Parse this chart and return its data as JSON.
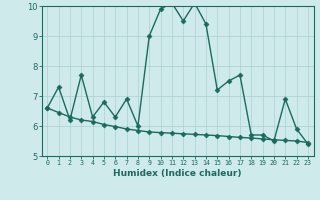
{
  "xlabel": "Humidex (Indice chaleur)",
  "x": [
    0,
    1,
    2,
    3,
    4,
    5,
    6,
    7,
    8,
    9,
    10,
    11,
    12,
    13,
    14,
    15,
    16,
    17,
    18,
    19,
    20,
    21,
    22,
    23
  ],
  "line1": [
    6.6,
    7.3,
    6.2,
    7.7,
    6.3,
    6.8,
    6.3,
    6.9,
    6.0,
    9.0,
    9.9,
    10.1,
    9.5,
    10.1,
    9.4,
    7.2,
    7.5,
    7.7,
    5.7,
    5.7,
    5.5,
    6.9,
    5.9,
    5.4
  ],
  "line2": [
    6.6,
    6.45,
    6.3,
    6.2,
    6.15,
    6.05,
    5.98,
    5.9,
    5.85,
    5.8,
    5.78,
    5.76,
    5.74,
    5.72,
    5.7,
    5.68,
    5.65,
    5.62,
    5.6,
    5.57,
    5.54,
    5.52,
    5.5,
    5.45
  ],
  "line_color": "#1a6b5e",
  "bg_color": "#ceeaea",
  "grid_color": "#aacfcf",
  "ylim": [
    5,
    10
  ],
  "yticks": [
    5,
    6,
    7,
    8,
    9,
    10
  ],
  "xlim": [
    -0.5,
    23.5
  ],
  "marker": "D",
  "markersize": 2.5,
  "linewidth": 1.0
}
